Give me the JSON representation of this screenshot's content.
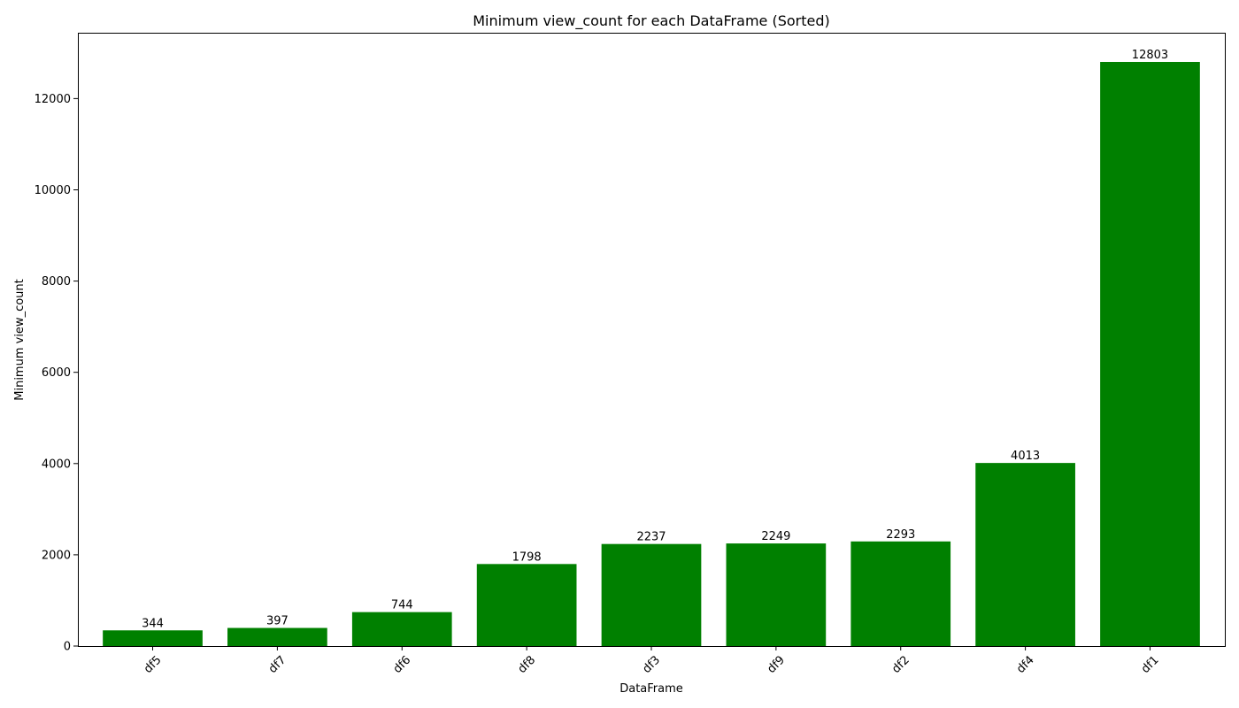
{
  "chart_data": {
    "type": "bar",
    "title": "Minimum view_count for each DataFrame (Sorted)",
    "xlabel": "DataFrame",
    "ylabel": "Minimum view_count",
    "categories": [
      "df5",
      "df7",
      "df6",
      "df8",
      "df3",
      "df9",
      "df2",
      "df4",
      "df1"
    ],
    "values": [
      344,
      397,
      744,
      1798,
      2237,
      2249,
      2293,
      4013,
      12803
    ],
    "data_labels": [
      "344",
      "397",
      "744",
      "1798",
      "2237",
      "2249",
      "2293",
      "4013",
      "12803"
    ],
    "ylim": [
      0,
      13443
    ],
    "yticks": [
      0,
      2000,
      4000,
      6000,
      8000,
      10000,
      12000
    ],
    "ytick_labels": [
      "0",
      "2000",
      "4000",
      "6000",
      "8000",
      "10000",
      "12000"
    ],
    "bar_color": "#008000",
    "grid": false,
    "x_tick_rotation_deg": 45
  }
}
